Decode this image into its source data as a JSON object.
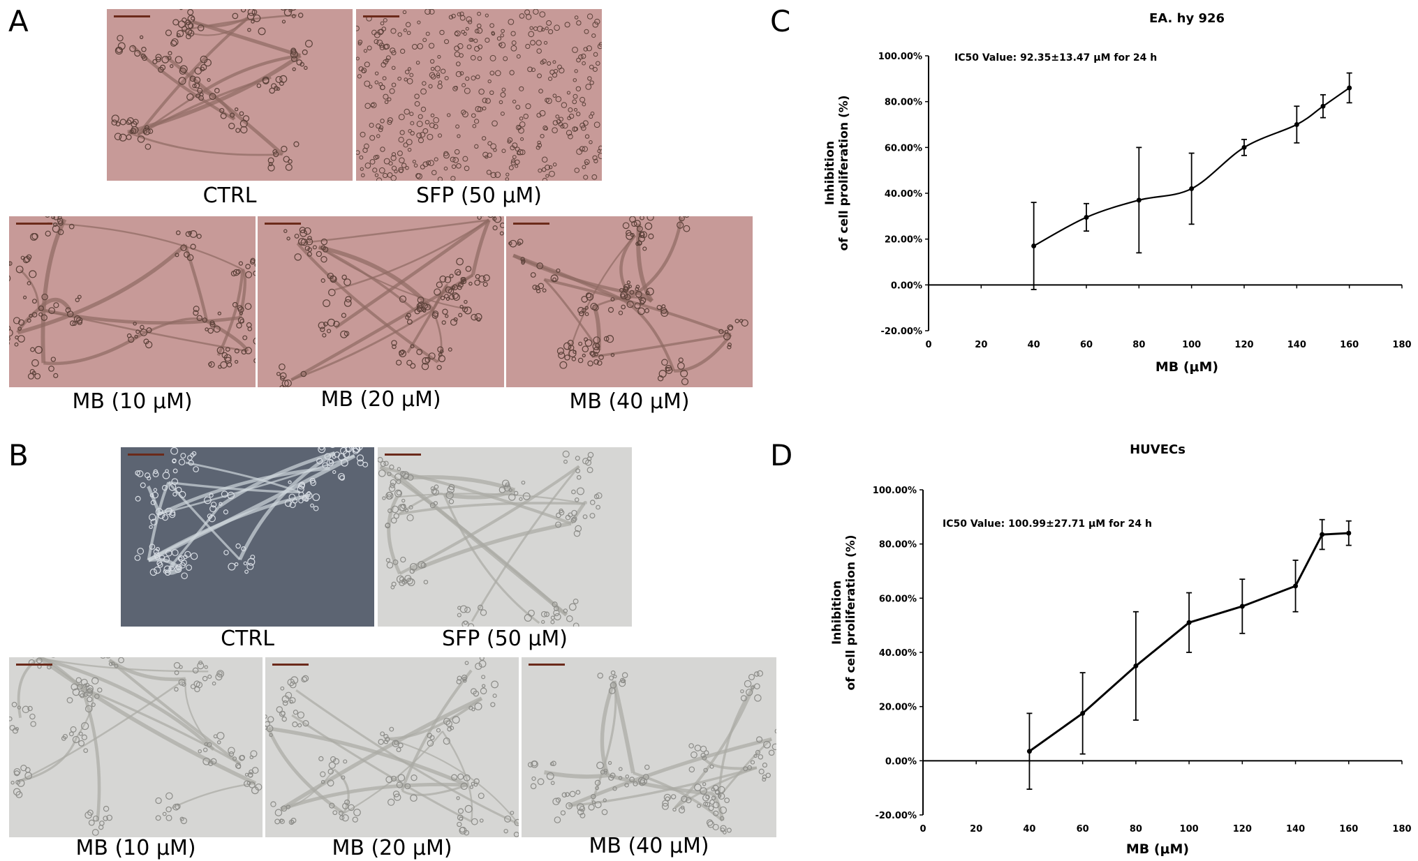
{
  "figure": {
    "panels": {
      "A": {
        "letter": "A",
        "images": [
          {
            "caption": "CTRL"
          },
          {
            "caption": "SFP (50 μM)"
          },
          {
            "caption": "MB (10 μM)"
          },
          {
            "caption": "MB (20 μM)"
          },
          {
            "caption": "MB (40 μM)"
          }
        ],
        "tint": "#c79a98"
      },
      "B": {
        "letter": "B",
        "images": [
          {
            "caption": "CTRL"
          },
          {
            "caption": "SFP (50 μM)"
          },
          {
            "caption": "MB (10 μM)"
          },
          {
            "caption": "MB (20 μM)"
          },
          {
            "caption": "MB (40 μM)"
          }
        ],
        "tint": "#d6d6d4"
      },
      "C": {
        "letter": "C"
      },
      "D": {
        "letter": "D"
      }
    }
  },
  "chart_data": [
    {
      "panel": "C",
      "type": "line",
      "title": "EA. hy 926",
      "annotation": "IC50 Value:  92.35±13.47 μM for 24 h",
      "xlabel": "MB (μM)",
      "ylabel_line1": "Inhibition",
      "ylabel_line2": "of cell proliferation (%)",
      "xlim": [
        0,
        180
      ],
      "ylim": [
        -20,
        100
      ],
      "xticks": [
        0,
        20,
        40,
        60,
        80,
        100,
        120,
        140,
        160,
        180
      ],
      "yticks": [
        "100.00%",
        "80.00%",
        "60.00%",
        "40.00%",
        "20.00%",
        "0.00%",
        "-20.00%"
      ],
      "smooth": true,
      "x": [
        40,
        60,
        80,
        100,
        120,
        140,
        150,
        160
      ],
      "y": [
        17,
        29.5,
        37,
        42,
        60,
        70,
        78,
        86
      ],
      "err": [
        19,
        6,
        23,
        15.5,
        3.5,
        8,
        5,
        6.5
      ]
    },
    {
      "panel": "D",
      "type": "line",
      "title": "HUVECs",
      "annotation": "IC50 Value:  100.99±27.71 μM for 24 h",
      "xlabel": "MB (μM)",
      "ylabel_line1": "Inhibition",
      "ylabel_line2": "of cell proliferation (%)",
      "xlim": [
        0,
        180
      ],
      "ylim": [
        -20,
        100
      ],
      "xticks": [
        0,
        20,
        40,
        60,
        80,
        100,
        120,
        140,
        160,
        180
      ],
      "yticks": [
        "100.00%",
        "80.00%",
        "60.00%",
        "40.00%",
        "20.00%",
        "0.00%",
        "-20.00%"
      ],
      "smooth": false,
      "x": [
        40,
        60,
        80,
        100,
        120,
        140,
        150,
        160
      ],
      "y": [
        3.5,
        17.5,
        35,
        51,
        57,
        64.5,
        83.5,
        84
      ],
      "err": [
        14,
        15,
        20,
        11,
        10,
        9.5,
        5.5,
        4.5
      ]
    }
  ]
}
